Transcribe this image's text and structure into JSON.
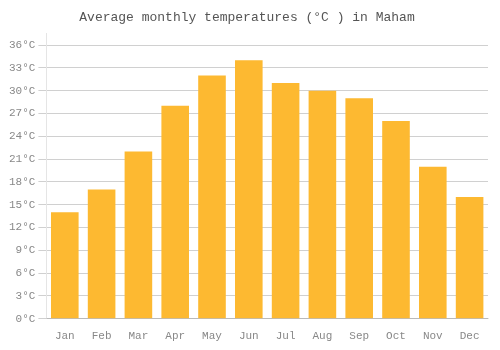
{
  "chart_data": {
    "type": "bar",
    "title": "Average monthly temperatures (°C ) in Maham",
    "categories": [
      "Jan",
      "Feb",
      "Mar",
      "Apr",
      "May",
      "Jun",
      "Jul",
      "Aug",
      "Sep",
      "Oct",
      "Nov",
      "Dec"
    ],
    "values": [
      14,
      17,
      22,
      28,
      32,
      34,
      31,
      30,
      29,
      26,
      20,
      16
    ],
    "color": "#FDB931",
    "ylim": [
      0,
      37.5
    ],
    "yticks": [
      {
        "value": 0,
        "label": "0°C"
      },
      {
        "value": 3,
        "label": "3°C"
      },
      {
        "value": 6,
        "label": "6°C"
      },
      {
        "value": 9,
        "label": "9°C"
      },
      {
        "value": 12,
        "label": "12°C"
      },
      {
        "value": 15,
        "label": "15°C"
      },
      {
        "value": 18,
        "label": "18°C"
      },
      {
        "value": 21,
        "label": "21°C"
      },
      {
        "value": 24,
        "label": "24°C"
      },
      {
        "value": 27,
        "label": "27°C"
      },
      {
        "value": 30,
        "label": "30°C"
      },
      {
        "value": 33,
        "label": "33°C"
      },
      {
        "value": 36,
        "label": "36°C"
      }
    ],
    "grid": true
  }
}
